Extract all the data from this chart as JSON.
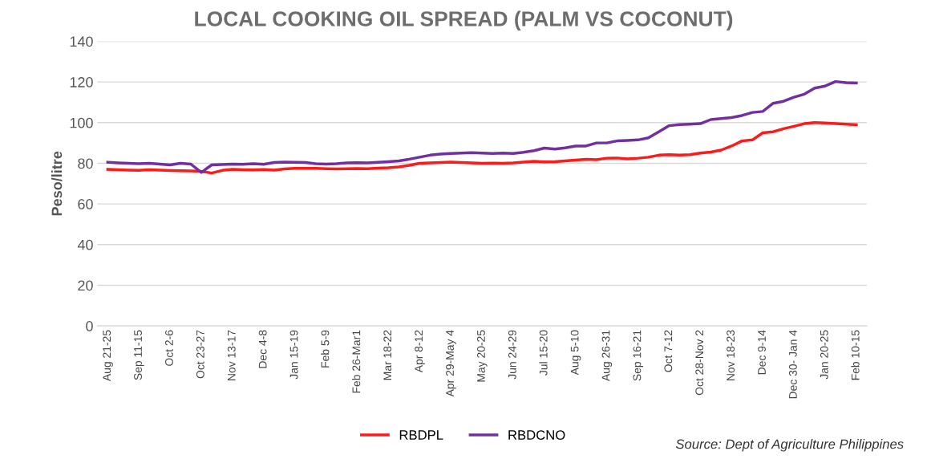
{
  "chart_data": {
    "type": "line",
    "title": "LOCAL COOKING OIL SPREAD (PALM VS COCONUT)",
    "ylabel": "Peso/litre",
    "categories": [
      "Aug 21-25",
      null,
      null,
      "Sep 11-15",
      null,
      null,
      "Oct 2-6",
      null,
      null,
      "Oct 23-27",
      null,
      null,
      "Nov 13-17",
      null,
      null,
      "Dec 4-8",
      null,
      null,
      "Jan 15-19",
      null,
      null,
      "Feb 5-9",
      null,
      null,
      "Feb 26-Mar1",
      null,
      null,
      "Mar 18-22",
      null,
      null,
      "Apr 8-12",
      null,
      null,
      "Apr 29-May 4",
      null,
      null,
      "May 20-25",
      null,
      null,
      "Jun 24-29",
      null,
      null,
      "Jul 15-20",
      null,
      null,
      "Aug 5-10",
      null,
      null,
      "Aug 26-31",
      null,
      null,
      "Sep 16-21",
      null,
      null,
      "Oct 7-12",
      null,
      null,
      "Oct 28-Nov 2",
      null,
      null,
      "Nov 18-23",
      null,
      null,
      "Dec 9-14",
      null,
      null,
      "Dec 30- Jan 4",
      null,
      null,
      "Jan 20-25",
      null,
      null,
      "Feb 10-15"
    ],
    "series": [
      {
        "name": "RBDPL",
        "color": "#ff1a1a",
        "values": [
          77,
          76.8,
          76.6,
          76.5,
          76.8,
          76.6,
          76.4,
          76.3,
          76.2,
          76,
          75.2,
          76.5,
          77,
          76.8,
          76.7,
          76.9,
          76.6,
          77.2,
          77.5,
          77.5,
          77.5,
          77.3,
          77.2,
          77.3,
          77.4,
          77.3,
          77.6,
          77.8,
          78.2,
          79,
          80,
          80.2,
          80.4,
          80.6,
          80.4,
          80.2,
          80,
          80.1,
          80,
          80.2,
          80.6,
          81,
          80.7,
          80.8,
          81.2,
          81.6,
          82,
          81.8,
          82.5,
          82.6,
          82.2,
          82.5,
          83,
          84,
          84.2,
          84,
          84.2,
          85,
          85.5,
          86.5,
          88.5,
          91,
          91.5,
          95,
          95.5,
          97,
          98.2,
          99.5,
          100,
          99.8,
          99.5,
          99.2,
          99
        ]
      },
      {
        "name": "RBDCNO",
        "color": "#7030a0",
        "values": [
          80.5,
          80.2,
          80,
          79.8,
          80,
          79.6,
          79.2,
          80,
          79.6,
          75.5,
          79.2,
          79.4,
          79.6,
          79.5,
          79.8,
          79.5,
          80.4,
          80.6,
          80.5,
          80.4,
          79.8,
          79.6,
          79.8,
          80.2,
          80.3,
          80.2,
          80.5,
          80.8,
          81.2,
          82,
          83,
          84,
          84.5,
          84.8,
          85,
          85.2,
          85,
          84.8,
          85,
          84.8,
          85.4,
          86.2,
          87.5,
          87,
          87.6,
          88.5,
          88.5,
          90,
          90,
          91,
          91.2,
          91.5,
          92.5,
          95.5,
          98.5,
          99,
          99.2,
          99.5,
          101.5,
          102,
          102.5,
          103.5,
          105,
          105.5,
          109.5,
          110.5,
          112.5,
          114,
          117,
          118,
          120.2,
          119.7,
          119.5
        ]
      }
    ],
    "ylim": [
      0,
      140
    ],
    "yticks": [
      0,
      20,
      40,
      60,
      80,
      100,
      120,
      140
    ],
    "grid": "y",
    "legend": "bottom",
    "annotations": [
      "Source: Dept of Agriculture Philippines"
    ]
  }
}
